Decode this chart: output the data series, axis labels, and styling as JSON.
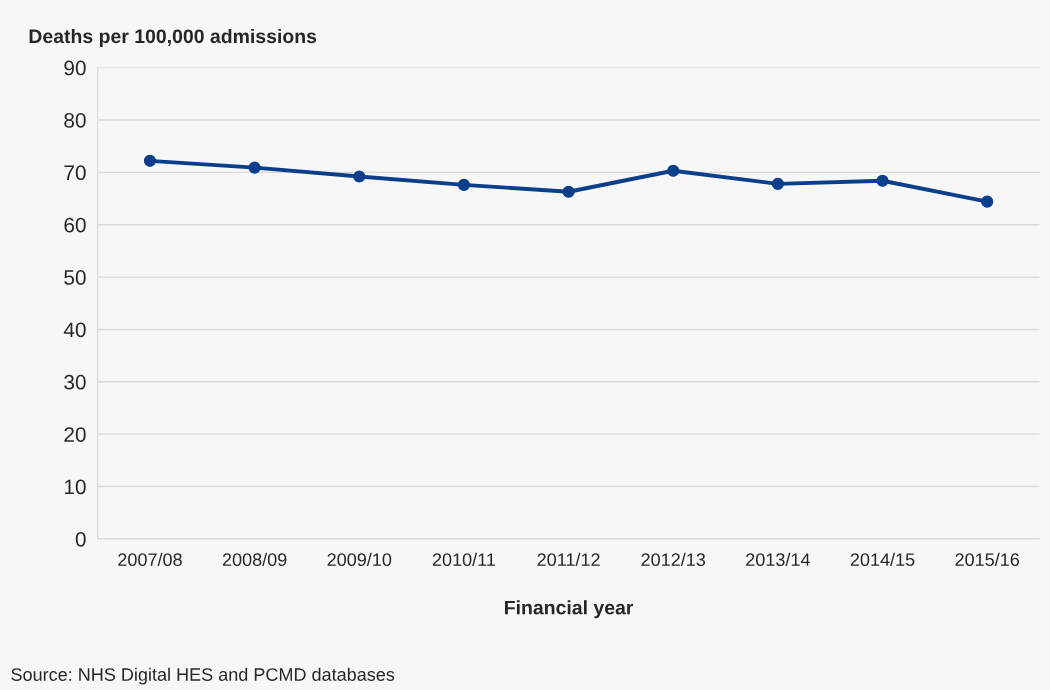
{
  "chart_data": {
    "type": "line",
    "ylabel": "Deaths per 100,000 admissions",
    "xlabel": "Financial year",
    "categories": [
      "2007/08",
      "2008/09",
      "2009/10",
      "2010/11",
      "2011/12",
      "2012/13",
      "2013/14",
      "2014/15",
      "2015/16"
    ],
    "series": [
      {
        "color": "#0b3f8c",
        "values": [
          72.2,
          70.9,
          69.2,
          67.6,
          66.3,
          70.3,
          67.8,
          68.4,
          64.4
        ]
      }
    ],
    "ylim": [
      0,
      90
    ],
    "yticks": [
      0,
      10,
      20,
      30,
      40,
      50,
      60,
      70,
      80,
      90
    ],
    "grid": "y",
    "marker": "circle",
    "line_style": "solid",
    "legend": false,
    "annotations": [
      "Source: NHS Digital HES and PCMD databases"
    ]
  }
}
